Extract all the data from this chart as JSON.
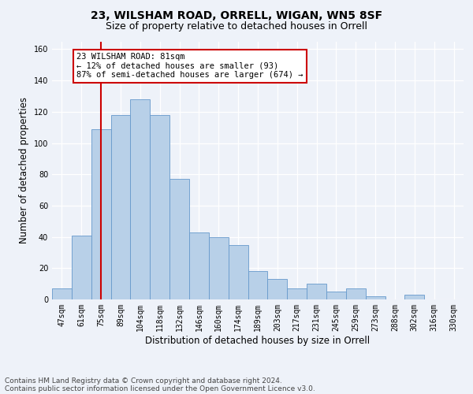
{
  "title1": "23, WILSHAM ROAD, ORRELL, WIGAN, WN5 8SF",
  "title2": "Size of property relative to detached houses in Orrell",
  "xlabel": "Distribution of detached houses by size in Orrell",
  "ylabel": "Number of detached properties",
  "bar_color": "#b8d0e8",
  "bar_edge_color": "#6699cc",
  "categories": [
    "47sqm",
    "61sqm",
    "75sqm",
    "89sqm",
    "104sqm",
    "118sqm",
    "132sqm",
    "146sqm",
    "160sqm",
    "174sqm",
    "189sqm",
    "203sqm",
    "217sqm",
    "231sqm",
    "245sqm",
    "259sqm",
    "273sqm",
    "288sqm",
    "302sqm",
    "316sqm",
    "330sqm"
  ],
  "values": [
    7,
    41,
    109,
    118,
    128,
    118,
    77,
    43,
    40,
    35,
    18,
    13,
    7,
    10,
    5,
    7,
    2,
    0,
    3,
    0,
    0
  ],
  "ylim": [
    0,
    165
  ],
  "yticks": [
    0,
    20,
    40,
    60,
    80,
    100,
    120,
    140,
    160
  ],
  "vline_x_index": 2,
  "vline_color": "#cc0000",
  "annotation_line1": "23 WILSHAM ROAD: 81sqm",
  "annotation_line2": "← 12% of detached houses are smaller (93)",
  "annotation_line3": "87% of semi-detached houses are larger (674) →",
  "annotation_box_color": "#cc0000",
  "footer1": "Contains HM Land Registry data © Crown copyright and database right 2024.",
  "footer2": "Contains public sector information licensed under the Open Government Licence v3.0.",
  "background_color": "#eef2f9",
  "grid_color": "#ffffff",
  "title1_fontsize": 10,
  "title2_fontsize": 9,
  "xlabel_fontsize": 8.5,
  "ylabel_fontsize": 8.5,
  "tick_fontsize": 7,
  "annotation_fontsize": 7.5,
  "footer_fontsize": 6.5
}
